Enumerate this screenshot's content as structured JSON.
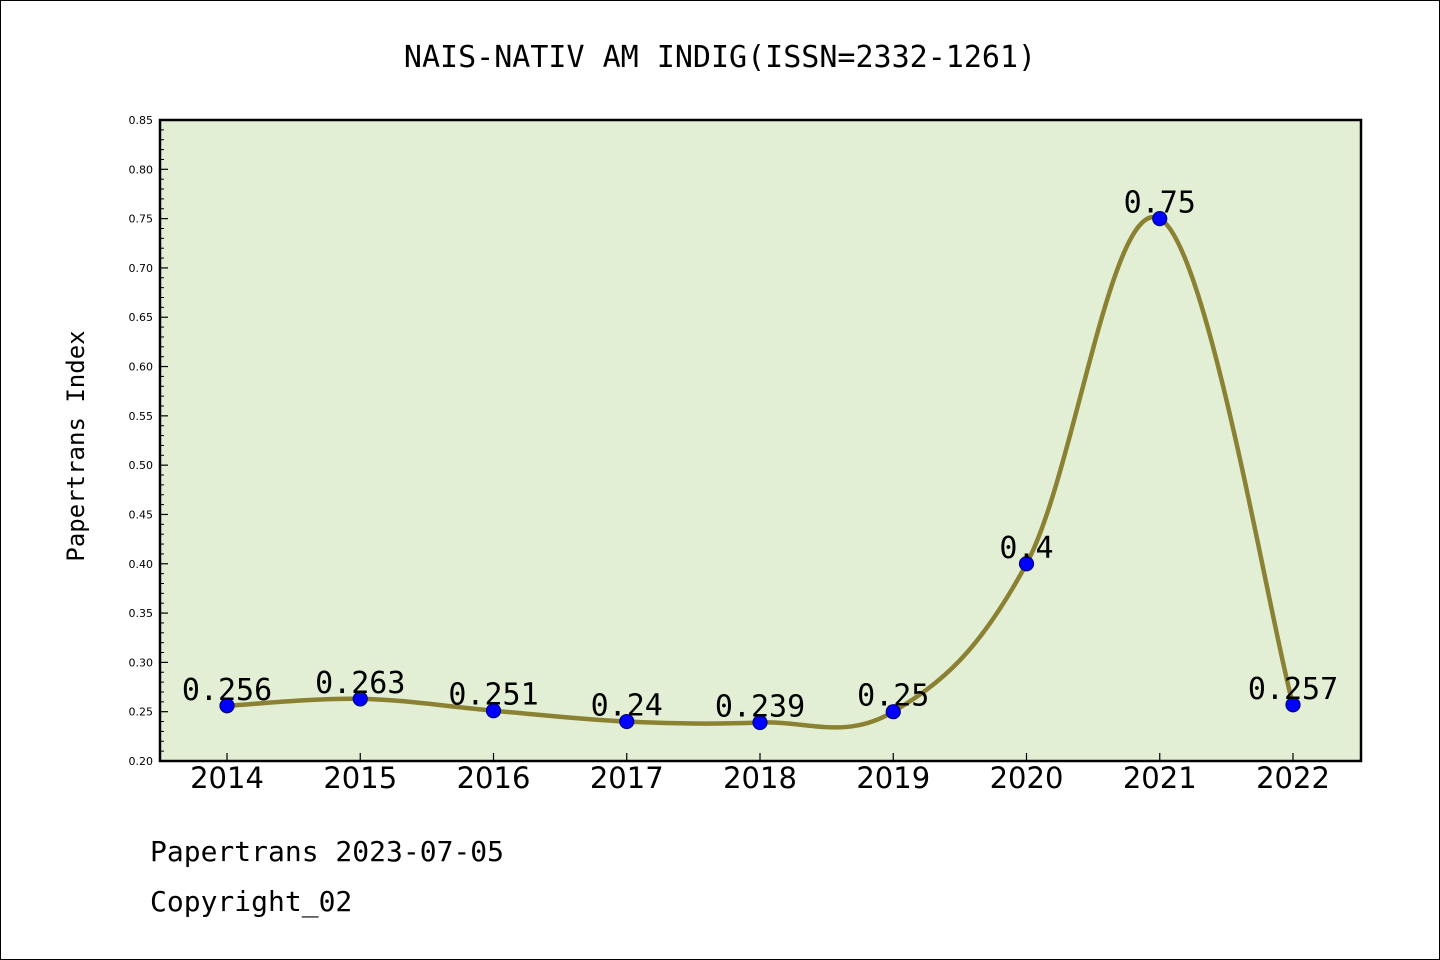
{
  "colors": {
    "plot_background": "#e2efd4",
    "line": "#8b8133",
    "marker": "#0000ff",
    "marker_edge": "#000080"
  },
  "chart_data": {
    "type": "line",
    "title": "NAIS-NATIV AM INDIG(ISSN=2332-1261)",
    "xlabel": "",
    "ylabel": "Papertrans Index",
    "categories": [
      "2014",
      "2015",
      "2016",
      "2017",
      "2018",
      "2019",
      "2020",
      "2021",
      "2022"
    ],
    "values": [
      0.256,
      0.263,
      0.251,
      0.24,
      0.239,
      0.25,
      0.4,
      0.75,
      0.257
    ],
    "data_labels": [
      "0.256",
      "0.263",
      "0.251",
      "0.24",
      "0.239",
      "0.25",
      "0.4",
      "0.75",
      "0.257"
    ],
    "ylim": [
      0.2,
      0.85
    ],
    "yticks": [
      "0.20",
      "0.25",
      "0.30",
      "0.35",
      "0.40",
      "0.45",
      "0.50",
      "0.55",
      "0.60",
      "0.65",
      "0.70",
      "0.75",
      "0.80",
      "0.85"
    ],
    "grid": false,
    "legend": "none"
  },
  "footer": {
    "line1": "Papertrans 2023-07-05",
    "line2": "Copyright_02"
  }
}
